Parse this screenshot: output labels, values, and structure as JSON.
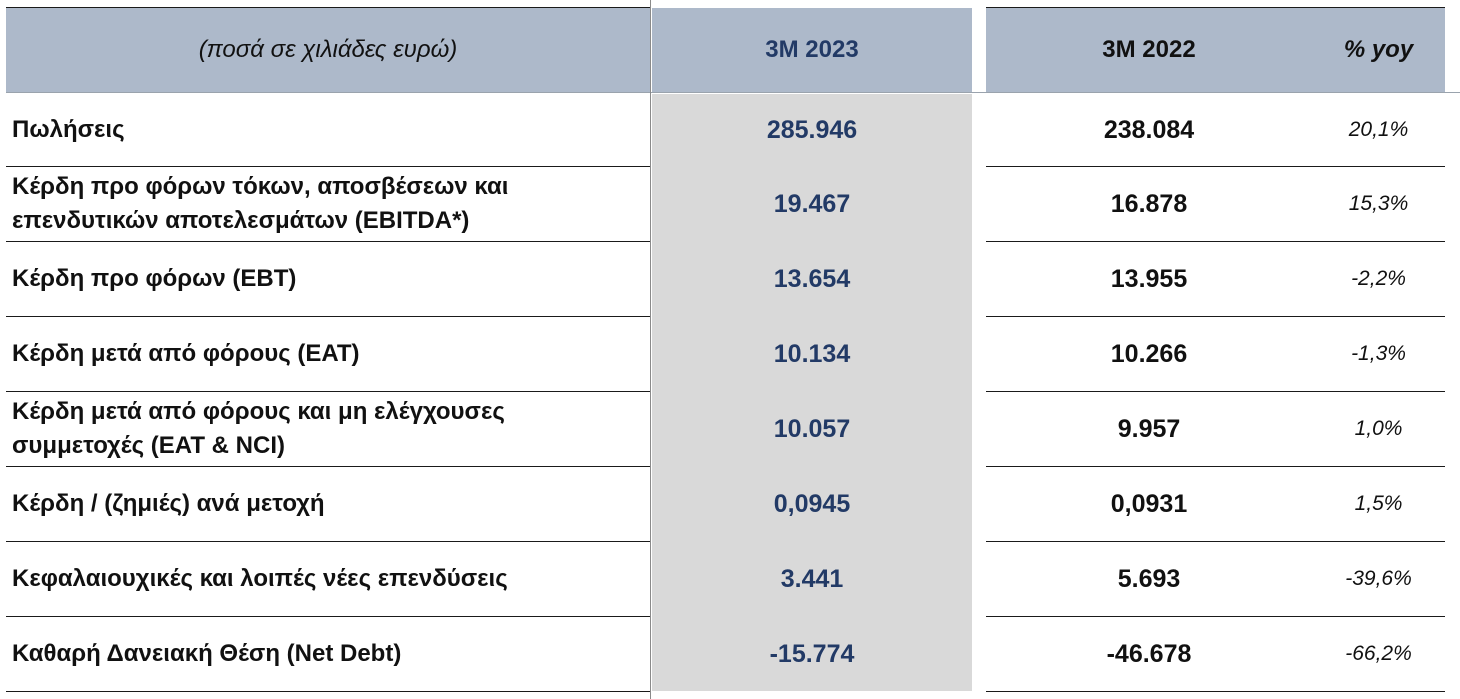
{
  "header": {
    "label": "(ποσά σε χιλιάδες ευρώ)",
    "current_period": "3M 2023",
    "previous_period": "3M 2022",
    "yoy": "% yoy"
  },
  "rows": [
    {
      "label": "Πωλήσεις",
      "current": "285.946",
      "previous": "238.084",
      "yoy": "20,1%"
    },
    {
      "label": "Κέρδη προ φόρων τόκων, αποσβέσεων και επενδυτικών αποτελεσμάτων (EBITDA*)",
      "current": "19.467",
      "previous": "16.878",
      "yoy": "15,3%"
    },
    {
      "label": "Κέρδη προ φόρων (EBT)",
      "current": "13.654",
      "previous": "13.955",
      "yoy": "-2,2%"
    },
    {
      "label": "Κέρδη μετά από φόρους (EAT)",
      "current": "10.134",
      "previous": "10.266",
      "yoy": "-1,3%"
    },
    {
      "label": "Κέρδη μετά από φόρους και μη ελέγχουσες συμμετοχές (EAT & NCI)",
      "current": "10.057",
      "previous": "9.957",
      "yoy": "1,0%"
    },
    {
      "label": "Κέρδη / (ζημιές) ανά μετοχή",
      "current": "0,0945",
      "previous": "0,0931",
      "yoy": "1,5%"
    },
    {
      "label": "Κεφαλαιουχικές και λοιπές νέες επενδύσεις",
      "current": "3.441",
      "previous": "5.693",
      "yoy": "-39,6%"
    },
    {
      "label": "Καθαρή Δανειακή Θέση (Net Debt)",
      "current": "-15.774",
      "previous": "-46.678",
      "yoy": "-66,2%"
    }
  ],
  "colors": {
    "header_bg": "#adb9ca",
    "current_column_bg": "#d9d9d9",
    "current_column_text": "#223a66"
  }
}
